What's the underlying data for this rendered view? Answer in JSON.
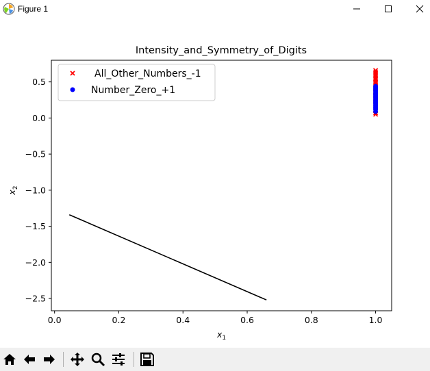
{
  "window": {
    "title": "Figure 1",
    "minimize_icon": "minimize-icon",
    "maximize_icon": "maximize-icon",
    "close_icon": "close-icon"
  },
  "toolbar": {
    "buttons": [
      "home-icon",
      "back-arrow-icon",
      "forward-arrow-icon",
      "pan-icon",
      "zoom-icon",
      "subplots-icon",
      "save-icon"
    ]
  },
  "chart_data": {
    "type": "scatter",
    "title": "Intensity_and_Symmetry_of_Digits",
    "xlabel": "x",
    "xlabel_sub": "1",
    "ylabel": "x",
    "ylabel_sub": "2",
    "xlim": [
      -0.01,
      1.05
    ],
    "ylim": [
      -2.67,
      0.8
    ],
    "x_ticks": [
      0.0,
      0.2,
      0.4,
      0.6,
      0.8,
      1.0
    ],
    "x_tick_labels": [
      "0.0",
      "0.2",
      "0.4",
      "0.6",
      "0.8",
      "1.0"
    ],
    "y_ticks": [
      0.5,
      0.0,
      -0.5,
      -1.0,
      -1.5,
      -2.0,
      -2.5
    ],
    "y_tick_labels": [
      "0.5",
      "0.0",
      "−0.5",
      "−1.0",
      "−1.5",
      "−2.0",
      "−2.5"
    ],
    "legend_position": "top-left",
    "series": [
      {
        "name": "All_Other_Numbers_-1",
        "marker": "x",
        "color": "#ff0000",
        "x": [
          1.0,
          1.0,
          1.0,
          1.0,
          1.0,
          1.0,
          1.0,
          1.0,
          1.0,
          1.0,
          1.0,
          1.0,
          1.0,
          1.0,
          1.0,
          1.0,
          1.0,
          1.0,
          1.0,
          1.0,
          1.0,
          1.0,
          1.0,
          1.0,
          1.0,
          1.0,
          1.0,
          1.0
        ],
        "y": [
          0.66,
          0.64,
          0.62,
          0.6,
          0.58,
          0.56,
          0.54,
          0.52,
          0.5,
          0.48,
          0.46,
          0.44,
          0.42,
          0.4,
          0.38,
          0.36,
          0.34,
          0.32,
          0.3,
          0.28,
          0.26,
          0.24,
          0.22,
          0.2,
          0.15,
          0.1,
          0.07,
          0.05
        ]
      },
      {
        "name": "Number_Zero_+1",
        "marker": "o",
        "color": "#0000ff",
        "x": [
          1.0,
          1.0,
          1.0,
          1.0,
          1.0,
          1.0,
          1.0,
          1.0,
          1.0,
          1.0,
          1.0,
          1.0,
          1.0,
          1.0,
          1.0,
          1.0,
          1.0,
          1.0
        ],
        "y": [
          0.44,
          0.42,
          0.4,
          0.38,
          0.36,
          0.34,
          0.32,
          0.3,
          0.28,
          0.26,
          0.24,
          0.22,
          0.2,
          0.18,
          0.16,
          0.14,
          0.12,
          0.09
        ]
      },
      {
        "name": "decision_line",
        "marker": "line",
        "color": "#000000",
        "x": [
          0.046,
          0.66
        ],
        "y": [
          -1.34,
          -2.52
        ]
      }
    ]
  }
}
